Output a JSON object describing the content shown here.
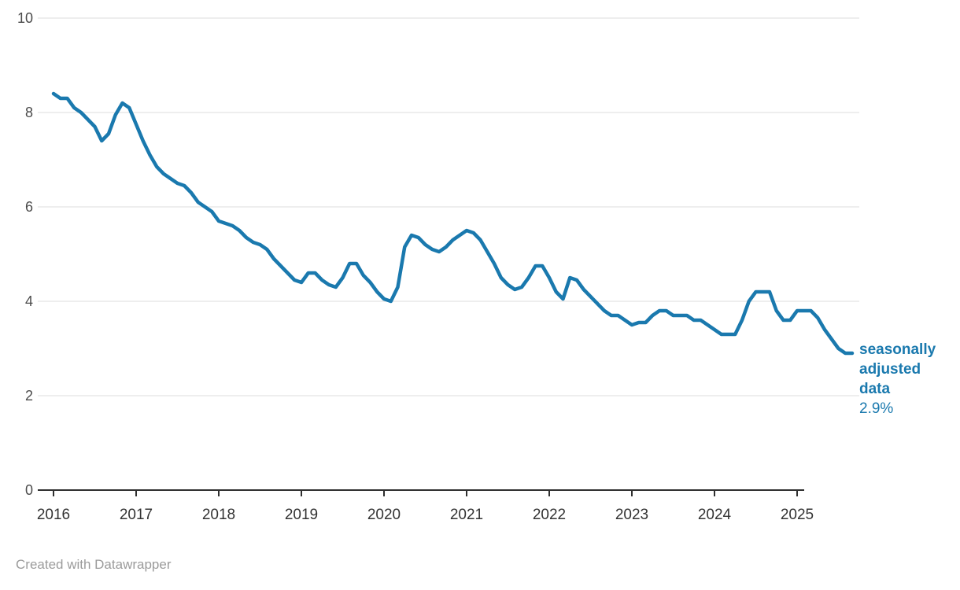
{
  "footer": "Created with Datawrapper",
  "colors": {
    "accent": "#1a79ae",
    "grid": "#dddddd",
    "axis": "#2f2f2f",
    "y_tick_label": "#4b4b4b",
    "x_tick_label": "#333333",
    "footer_text": "#9b9b9b",
    "background": "#ffffff"
  },
  "chart_data": {
    "type": "line",
    "title": "",
    "xlabel": "",
    "ylabel": "",
    "grid": "horizontal",
    "legend_position": "annotation-right-of-line-end",
    "series_label": "seasonally adjusted data",
    "last_value_label": "2.9%",
    "x_start_year": 2016,
    "x_start_month": 1,
    "x_frequency": "monthly",
    "ylim": [
      0,
      10
    ],
    "yticks": [
      0,
      2,
      4,
      6,
      8,
      10
    ],
    "ytick_labels": [
      "0",
      "2",
      "4",
      "6",
      "8",
      "10"
    ],
    "xticks": [
      2016,
      2017,
      2018,
      2019,
      2020,
      2021,
      2022,
      2023,
      2024,
      2025
    ],
    "xtick_labels": [
      "2016",
      "2017",
      "2018",
      "2019",
      "2020",
      "2021",
      "2022",
      "2023",
      "2024",
      "2025"
    ],
    "values": [
      8.4,
      8.3,
      8.3,
      8.1,
      8.0,
      7.85,
      7.7,
      7.4,
      7.55,
      7.95,
      8.2,
      8.1,
      7.75,
      7.4,
      7.1,
      6.85,
      6.7,
      6.6,
      6.5,
      6.45,
      6.3,
      6.1,
      6.0,
      5.9,
      5.7,
      5.65,
      5.6,
      5.5,
      5.35,
      5.25,
      5.2,
      5.1,
      4.9,
      4.75,
      4.6,
      4.45,
      4.4,
      4.6,
      4.6,
      4.45,
      4.35,
      4.3,
      4.5,
      4.8,
      4.8,
      4.55,
      4.4,
      4.2,
      4.05,
      4.0,
      4.3,
      5.15,
      5.4,
      5.35,
      5.2,
      5.1,
      5.05,
      5.15,
      5.3,
      5.4,
      5.5,
      5.45,
      5.3,
      5.05,
      4.8,
      4.5,
      4.35,
      4.25,
      4.3,
      4.5,
      4.75,
      4.75,
      4.5,
      4.2,
      4.05,
      4.5,
      4.45,
      4.25,
      4.1,
      3.95,
      3.8,
      3.7,
      3.7,
      3.6,
      3.5,
      3.55,
      3.55,
      3.7,
      3.8,
      3.8,
      3.7,
      3.7,
      3.7,
      3.6,
      3.6,
      3.5,
      3.4,
      3.3,
      3.3,
      3.3,
      3.6,
      4.0,
      4.2,
      4.2,
      4.2,
      3.8,
      3.6,
      3.6,
      3.8,
      3.8,
      3.8,
      3.65,
      3.4,
      3.2,
      3.0,
      2.9,
      2.9
    ]
  }
}
